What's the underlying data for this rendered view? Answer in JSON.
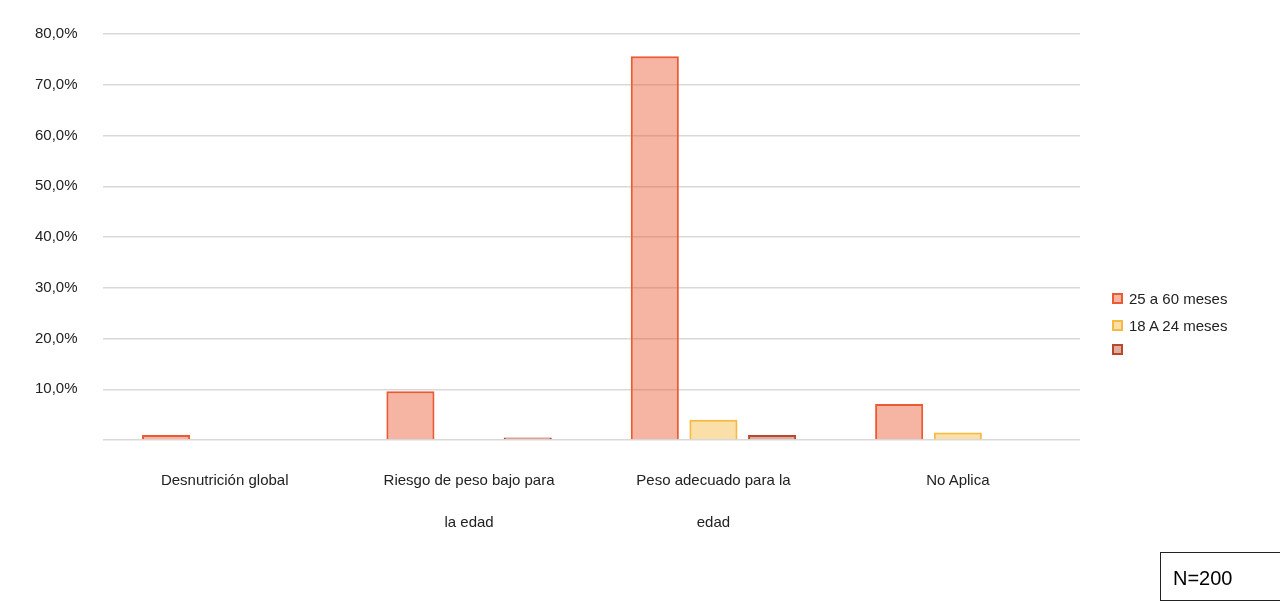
{
  "chart_data": {
    "type": "bar",
    "categories": [
      "Desnutrición global",
      "Riesgo de peso bajo para la edad",
      "Peso adecuado para la edad",
      "No Aplica"
    ],
    "series": [
      {
        "name": "25 a 60 meses",
        "color": "#ec5a34",
        "values": [
          1.0,
          9.6,
          75.6,
          7.1
        ]
      },
      {
        "name": "18 A 24 meses",
        "color": "#f7b941",
        "values": [
          null,
          null,
          4.0,
          1.5
        ]
      },
      {
        "color": "#b9472c",
        "values": [
          null,
          0.5,
          1.0,
          null
        ]
      }
    ],
    "ylim": [
      0,
      80
    ],
    "yticks": [
      {
        "value": 0,
        "label": null
      },
      {
        "value": 10,
        "label": "10,0%"
      },
      {
        "value": 20,
        "label": "20,0%"
      },
      {
        "value": 30,
        "label": "30,0%"
      },
      {
        "value": 40,
        "label": "40,0%"
      },
      {
        "value": 50,
        "label": "50,0%"
      },
      {
        "value": 60,
        "label": "60,0%"
      },
      {
        "value": 70,
        "label": "70,0%"
      },
      {
        "value": 80,
        "label": "80,0%"
      }
    ],
    "grid": "y",
    "legend": "right",
    "annotations": [
      "N=200"
    ]
  }
}
